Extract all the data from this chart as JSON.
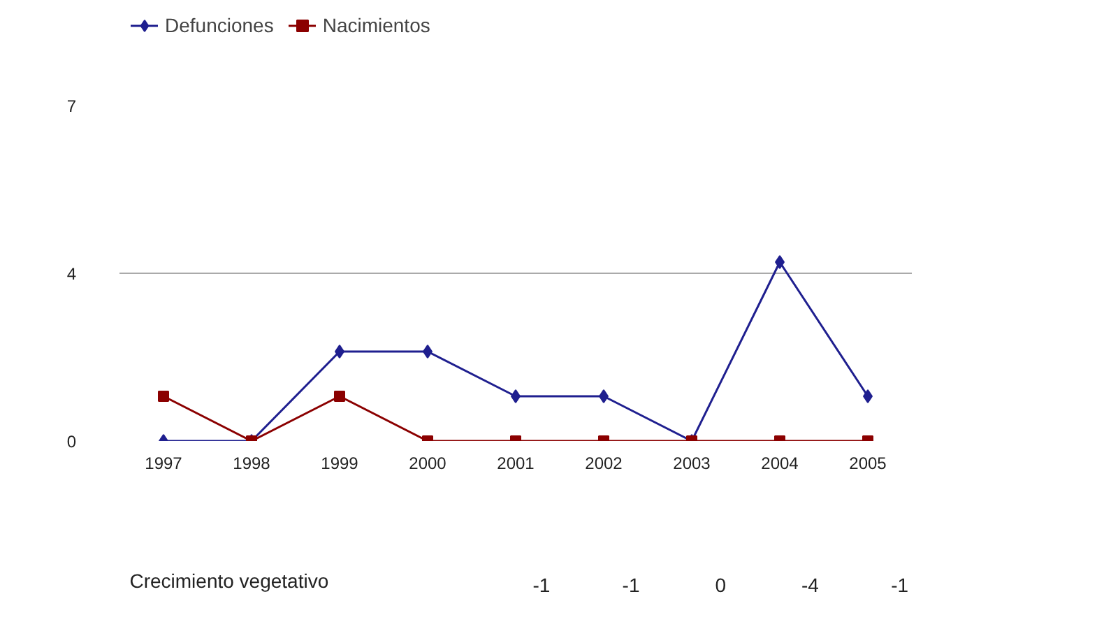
{
  "chart_data": {
    "type": "line",
    "categories": [
      "1997",
      "1998",
      "1999",
      "2000",
      "2001",
      "2002",
      "2003",
      "2004",
      "2005"
    ],
    "series": [
      {
        "name": "Defunciones",
        "color": "#1f1f8f",
        "marker": "diamond",
        "values": [
          0,
          0,
          2,
          2,
          1,
          1,
          0,
          4,
          1
        ]
      },
      {
        "name": "Nacimientos",
        "color": "#8b0000",
        "marker": "square",
        "values": [
          1,
          0,
          1,
          0,
          0,
          0,
          0,
          0,
          0
        ]
      }
    ],
    "ylim": [
      0,
      7.5
    ],
    "yticks": [
      0,
      {
        "value": 3.75,
        "label": "4"
      },
      {
        "value": 7.5,
        "label": "7"
      }
    ],
    "grid": "y",
    "legend": "top left",
    "line_style": "solid",
    "annotations": [
      "Crecimiento vegetativo",
      "-1",
      "-1",
      "0",
      "-4",
      "-1"
    ]
  }
}
